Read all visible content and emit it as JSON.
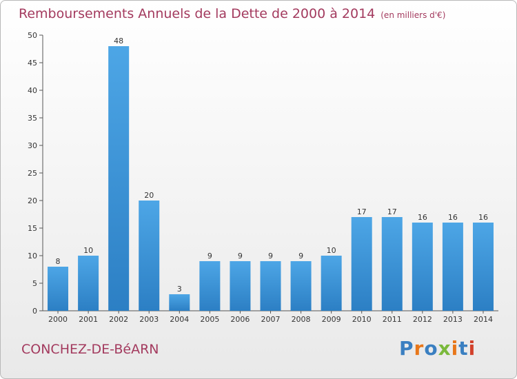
{
  "title": "Remboursements Annuels de la Dette de 2000 à 2014",
  "subtitle": "(en milliers d'€)",
  "commune": "CONCHEZ-DE-BéARN",
  "logo": {
    "text": "Proxiti",
    "colors": [
      "#3a7fc1",
      "#e8771a",
      "#3a7fc1",
      "#7ab93b",
      "#e8771a",
      "#3a7fc1",
      "#d2412b"
    ]
  },
  "chart_data": {
    "type": "bar",
    "categories": [
      "2000",
      "2001",
      "2002",
      "2003",
      "2004",
      "2005",
      "2006",
      "2007",
      "2008",
      "2009",
      "2010",
      "2011",
      "2012",
      "2013",
      "2014"
    ],
    "values": [
      8,
      10,
      48,
      20,
      3,
      9,
      9,
      9,
      9,
      10,
      17,
      17,
      16,
      16,
      16
    ],
    "ylim": [
      0,
      50
    ],
    "yticks": [
      0,
      5,
      10,
      15,
      20,
      25,
      30,
      35,
      40,
      45,
      50
    ],
    "bar_color": "#4da6e6",
    "bar_color_dark": "#2c7fc4",
    "grid": false,
    "legend": "none"
  }
}
